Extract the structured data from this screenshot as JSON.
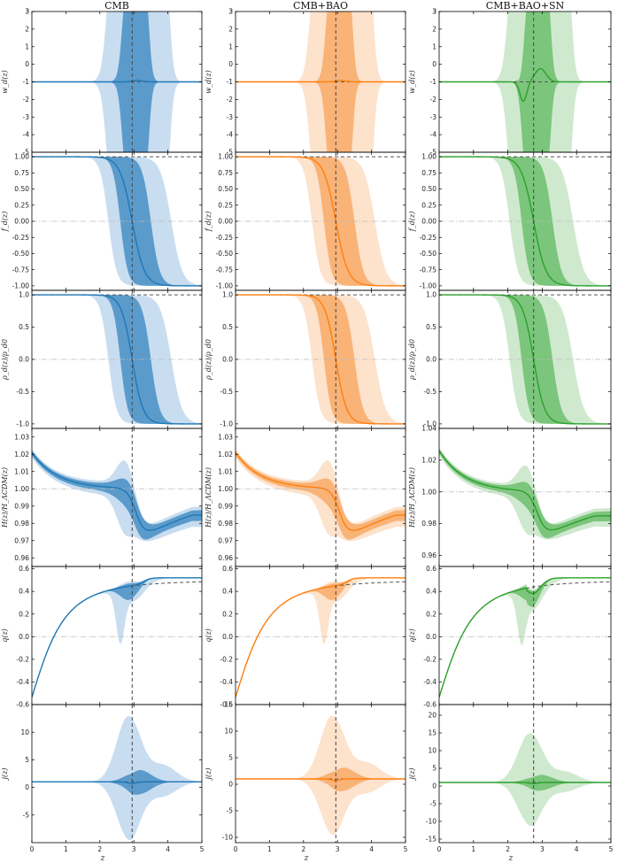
{
  "colors": {
    "CMB": {
      "dark": "#1f77b4",
      "mid": "#5b9bcc",
      "light": "#c9ddf0"
    },
    "CMB+BAO": {
      "dark": "#ff7f0e",
      "mid": "#f9b377",
      "light": "#fde2cc"
    },
    "CMB+BAO+SN": {
      "dark": "#2ca02c",
      "mid": "#7cc57c",
      "light": "#cfe9cf"
    },
    "reference": "#555555"
  },
  "chart_data": [
    {
      "type": "area",
      "panel_grid": {
        "rows": 6,
        "cols": 3
      },
      "columns": [
        {
          "title": "CMB",
          "transition_z": 2.95
        },
        {
          "title": "CMB+BAO",
          "transition_z": 2.95
        },
        {
          "title": "CMB+BAO+SN",
          "transition_z": 2.75
        }
      ],
      "xlabel": "z",
      "xlim": [
        0,
        5
      ],
      "xticks": [
        "0",
        "1",
        "2",
        "3",
        "4",
        "5"
      ],
      "rows": [
        {
          "ylabel": "w_d(z)",
          "ylim": [
            [
              -5,
              3
            ],
            [
              -5,
              3
            ],
            [
              -5,
              3
            ]
          ],
          "yticks": [
            [
              -4,
              -3,
              -2,
              -1,
              0,
              1,
              2,
              3
            ],
            [
              -4,
              -3,
              -2,
              -1,
              0,
              1,
              2,
              3
            ],
            [
              -4,
              -3,
              -2,
              -1,
              0,
              1,
              2,
              3
            ]
          ],
          "reference": {
            "label": "w = -1",
            "y": -1
          }
        },
        {
          "ylabel": "f_d(z)",
          "ylim": [
            [
              -1.07,
              1.07
            ],
            [
              -1.07,
              1.07
            ],
            [
              -1.07,
              1.07
            ]
          ],
          "yticks": [
            [
              -1.0,
              -0.75,
              -0.5,
              -0.25,
              0.0,
              0.25,
              0.5,
              0.75,
              1.0
            ],
            [
              -1.0,
              -0.75,
              -0.5,
              -0.25,
              0.0,
              0.25,
              0.5,
              0.75,
              1.0
            ],
            [
              -1.0,
              -0.75,
              -0.5,
              -0.25,
              0.0,
              0.25,
              0.5,
              0.75,
              1.0
            ]
          ],
          "reference": {
            "y_upper": 1.0,
            "y_zero": 0.0
          }
        },
        {
          "ylabel": "ρ_d(z)/ρ_d0",
          "ylim": [
            [
              -1.07,
              1.07
            ],
            [
              -1.07,
              1.07
            ],
            [
              -1.07,
              1.07
            ]
          ],
          "yticks": [
            [
              -1.0,
              -0.5,
              0.0,
              0.5,
              1.0
            ],
            [
              -1.0,
              -0.5,
              0.0,
              0.5,
              1.0
            ],
            [
              -1.0,
              -0.5,
              0.0,
              0.5,
              1.0
            ]
          ],
          "reference": {
            "y_upper": 1.0,
            "y_zero": 0.0
          }
        },
        {
          "ylabel": "H(z)/H_ΛCDM(z)",
          "ylim": [
            [
              0.955,
              1.035
            ],
            [
              0.955,
              1.035
            ],
            [
              0.953,
              1.04
            ]
          ],
          "yticks": [
            [
              0.96,
              0.97,
              0.98,
              0.99,
              1.0,
              1.01,
              1.02,
              1.03
            ],
            [
              0.96,
              0.97,
              0.98,
              0.99,
              1.0,
              1.01,
              1.02,
              1.03
            ],
            [
              0.96,
              0.98,
              1.0,
              1.02,
              1.04
            ]
          ],
          "reference": {
            "y": 1.0
          }
        },
        {
          "ylabel": "q(z)",
          "ylim": [
            [
              -0.6,
              0.62
            ],
            [
              -0.6,
              0.62
            ],
            [
              -0.6,
              0.62
            ]
          ],
          "yticks": [
            [
              -0.6,
              -0.4,
              -0.2,
              0.0,
              0.2,
              0.4,
              0.6
            ],
            [
              -0.6,
              -0.4,
              -0.2,
              0.0,
              0.2,
              0.4,
              0.6
            ],
            [
              -0.6,
              -0.4,
              -0.2,
              0.0,
              0.2,
              0.4,
              0.6
            ]
          ],
          "reference": {
            "y": 0.0,
            "lcdm": "q_ΛCDM(z)"
          }
        },
        {
          "ylabel": "j(z)",
          "ylim": [
            [
              -10,
              15
            ],
            [
              -11,
              15
            ],
            [
              -16,
              23
            ]
          ],
          "yticks": [
            [
              -5,
              0,
              5,
              10
            ],
            [
              -10,
              -5,
              0,
              5,
              10,
              15
            ],
            [
              -15,
              -10,
              -5,
              0,
              5,
              10,
              15,
              20
            ]
          ],
          "reference": {
            "y": 1
          }
        }
      ],
      "series": [
        {
          "name": "median",
          "style": "solid dark line"
        },
        {
          "name": "68% region",
          "style": "mid band"
        },
        {
          "name": "95% region",
          "style": "light band"
        }
      ],
      "grid": false,
      "legend": "none"
    }
  ]
}
